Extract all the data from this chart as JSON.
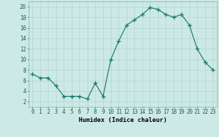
{
  "x": [
    0,
    1,
    2,
    3,
    4,
    5,
    6,
    7,
    8,
    9,
    10,
    11,
    12,
    13,
    14,
    15,
    16,
    17,
    18,
    19,
    20,
    21,
    22,
    23
  ],
  "y": [
    7.2,
    6.5,
    6.5,
    5.0,
    3.0,
    3.0,
    3.0,
    2.5,
    5.5,
    3.0,
    10.0,
    13.5,
    16.5,
    17.5,
    18.5,
    19.8,
    19.5,
    18.5,
    18.0,
    18.5,
    16.5,
    12.0,
    9.5,
    8.0
  ],
  "line_color": "#1a7a6e",
  "marker": "+",
  "marker_size": 4,
  "bg_color": "#cce9e5",
  "grid_color": "#afd4cf",
  "xlabel": "Humidex (Indice chaleur)",
  "xlim": [
    -0.5,
    23.5
  ],
  "ylim": [
    1,
    21
  ],
  "yticks": [
    2,
    4,
    6,
    8,
    10,
    12,
    14,
    16,
    18,
    20
  ],
  "xticks": [
    0,
    1,
    2,
    3,
    4,
    5,
    6,
    7,
    8,
    9,
    10,
    11,
    12,
    13,
    14,
    15,
    16,
    17,
    18,
    19,
    20,
    21,
    22,
    23
  ],
  "xtick_labels": [
    "0",
    "1",
    "2",
    "3",
    "4",
    "5",
    "6",
    "7",
    "8",
    "9",
    "10",
    "11",
    "12",
    "13",
    "14",
    "15",
    "16",
    "17",
    "18",
    "19",
    "20",
    "21",
    "22",
    "23"
  ],
  "label_fontsize": 6.5,
  "tick_fontsize": 5.5
}
